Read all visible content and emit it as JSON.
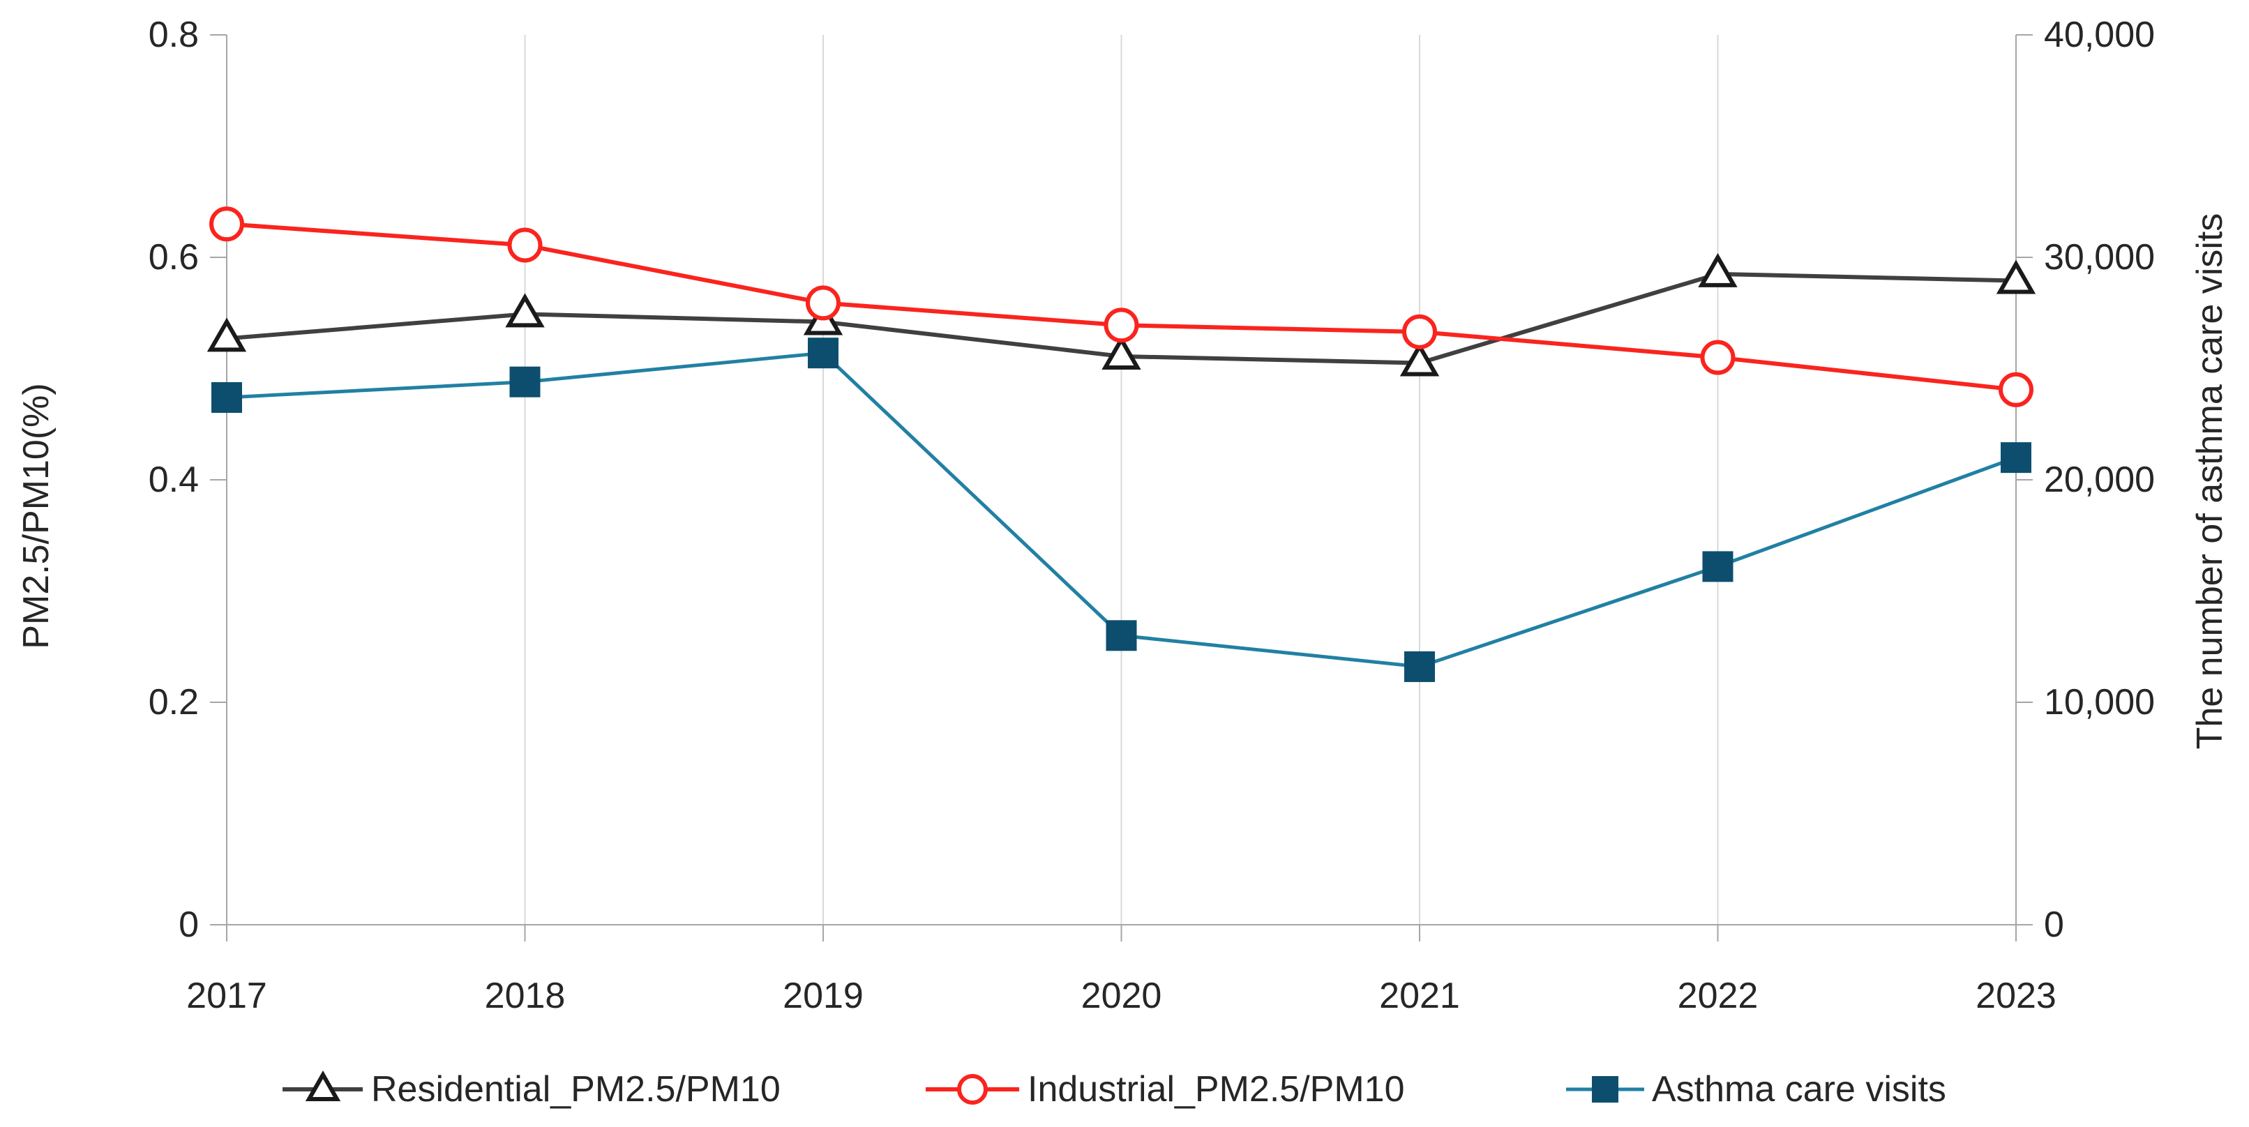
{
  "chart_data": {
    "type": "line",
    "title": "",
    "categories": [
      "2017",
      "2018",
      "2019",
      "2020",
      "2021",
      "2022",
      "2023"
    ],
    "series": [
      {
        "name": "Residential_PM2.5/PM10",
        "axis": "left",
        "marker": "triangle",
        "line_color": "#404040",
        "marker_fill": "#ffffff",
        "marker_stroke": "#1a1a1a",
        "values": [
          0.527,
          0.549,
          0.542,
          0.511,
          0.505,
          0.585,
          0.579
        ]
      },
      {
        "name": "Industrial_PM2.5/PM10",
        "axis": "left",
        "marker": "circle",
        "line_color": "#fa241e",
        "marker_fill": "#ffffff",
        "marker_stroke": "#fa241e",
        "values": [
          0.63,
          0.611,
          0.559,
          0.539,
          0.533,
          0.51,
          0.481
        ]
      },
      {
        "name": "Asthma care visits",
        "axis": "right",
        "marker": "square",
        "line_color": "#2180a3",
        "marker_fill": "#0d4e6e",
        "marker_stroke": "#0d4e6e",
        "values": [
          23700,
          24400,
          25700,
          13000,
          11600,
          16100,
          21000
        ]
      }
    ],
    "left_axis": {
      "title": "PM2.5/PM10(%)",
      "min": 0,
      "max": 0.8,
      "ticks": [
        0,
        0.2,
        0.4,
        0.6,
        0.8
      ],
      "tick_labels": [
        "0",
        "0.2",
        "0.4",
        "0.6",
        "0.8"
      ]
    },
    "right_axis": {
      "title": "The number of asthma care visits",
      "min": 0,
      "max": 40000,
      "ticks": [
        0,
        10000,
        20000,
        30000,
        40000
      ],
      "tick_labels": [
        "0",
        "10,000",
        "20,000",
        "30,000",
        "40,000"
      ]
    },
    "x_axis": {
      "labels": [
        "2017",
        "2018",
        "2019",
        "2020",
        "2021",
        "2022",
        "2023"
      ]
    },
    "grid": "vertical-only",
    "legend_position": "bottom"
  },
  "colors": {
    "background": "#ffffff",
    "gridline": "#d9d9d9",
    "axis_line": "#a6a6a6",
    "label_text": "#262626"
  }
}
